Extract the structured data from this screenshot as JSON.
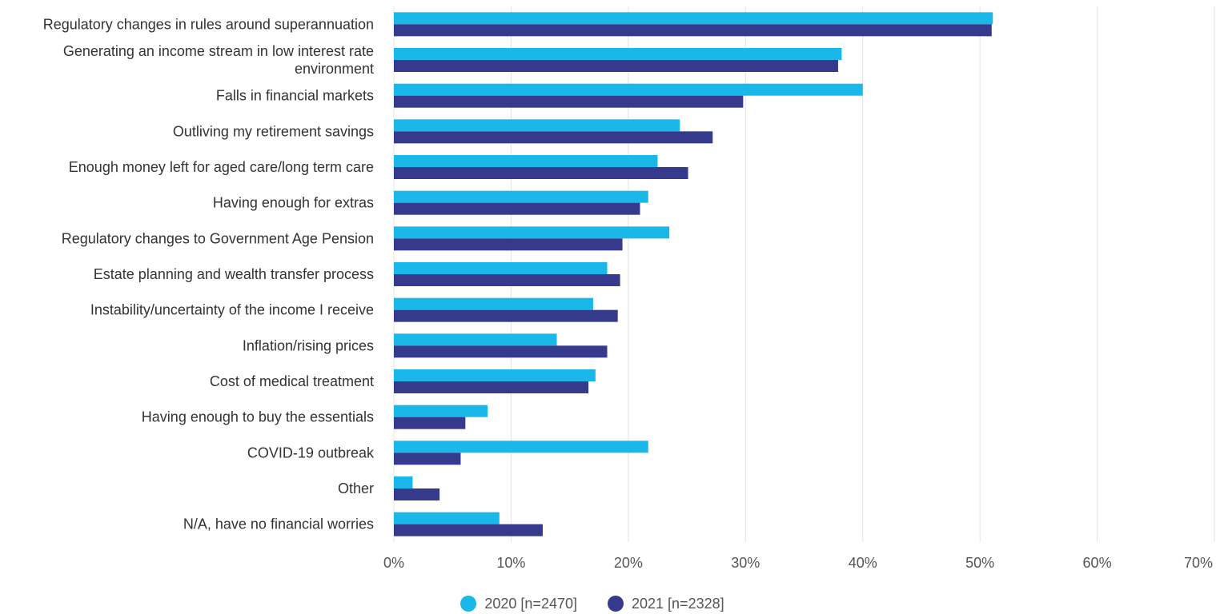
{
  "chart_data": {
    "type": "bar",
    "orientation": "horizontal",
    "title": "",
    "xlabel": "",
    "ylabel": "",
    "xlim": [
      0,
      70
    ],
    "x_ticks": [
      "0%",
      "10%",
      "20%",
      "30%",
      "40%",
      "50%",
      "60%",
      "70%"
    ],
    "grid": "vertical",
    "legend_position": "bottom",
    "categories": [
      "Regulatory changes in rules around superannuation",
      "Generating an income stream in low interest rate environment",
      "Falls in financial markets",
      "Outliving my retirement savings",
      "Enough money left for aged care/long term care",
      "Having enough for extras",
      "Regulatory changes to Government Age Pension",
      "Estate planning and wealth transfer process",
      "Instability/uncertainty of the income I receive",
      "Inflation/rising prices",
      "Cost of medical treatment",
      "Having enough to buy the essentials",
      "COVID-19 outbreak",
      "Other",
      "N/A, have no financial worries"
    ],
    "series": [
      {
        "name": "2020 [n=2470]",
        "color": "#1ab8e8",
        "values": [
          51.1,
          38.2,
          40.0,
          24.4,
          22.5,
          21.7,
          23.5,
          18.2,
          17.0,
          13.9,
          17.2,
          8.0,
          21.7,
          1.6,
          9.0
        ]
      },
      {
        "name": "2021 [n=2328]",
        "color": "#363a8c",
        "values": [
          51.0,
          37.9,
          29.8,
          27.2,
          25.1,
          21.0,
          19.5,
          19.3,
          19.1,
          18.2,
          16.6,
          6.1,
          5.7,
          3.9,
          12.7
        ]
      }
    ]
  }
}
